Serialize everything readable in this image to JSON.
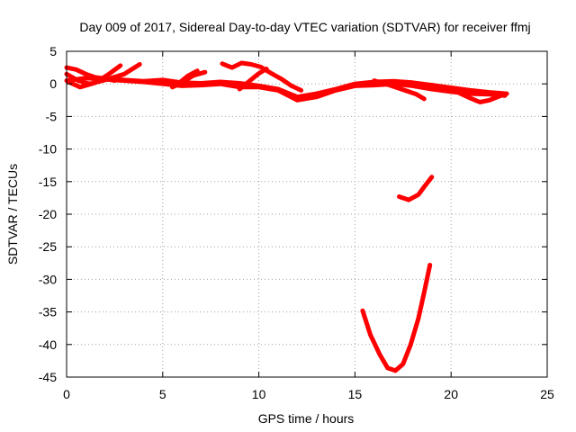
{
  "chart_data": {
    "type": "line",
    "title": "Day 009 of 2017, Sidereal Day-to-day VTEC variation (SDTVAR) for receiver ffmj",
    "xlabel": "GPS time / hours",
    "ylabel": "SDTVAR / TECUs",
    "xlim": [
      0,
      25
    ],
    "ylim": [
      -45,
      5
    ],
    "xticks": [
      0,
      5,
      10,
      15,
      20,
      25
    ],
    "yticks": [
      5,
      0,
      -5,
      -10,
      -15,
      -20,
      -25,
      -30,
      -35,
      -40,
      -45
    ],
    "grid": true,
    "legend": "none",
    "color": "#ff0000",
    "series": [
      {
        "values": [
          [
            0,
            2.5
          ],
          [
            0.5,
            2.2
          ],
          [
            1,
            1.5
          ],
          [
            1.5,
            1.0
          ],
          [
            2,
            0.8
          ],
          [
            2.5,
            0.5
          ]
        ]
      },
      {
        "values": [
          [
            0,
            1.5
          ],
          [
            0.6,
            0.5
          ],
          [
            1.2,
            0.0
          ],
          [
            2,
            0.6
          ],
          [
            3,
            1.5
          ],
          [
            3.8,
            3.0
          ]
        ]
      },
      {
        "values": [
          [
            0.1,
            0.3
          ],
          [
            0.7,
            -0.5
          ],
          [
            1.5,
            0.2
          ],
          [
            2.2,
            1.5
          ],
          [
            2.8,
            2.8
          ]
        ]
      },
      {
        "values": [
          [
            0,
            0.5
          ],
          [
            1,
            0.9
          ],
          [
            2,
            0.7
          ],
          [
            3,
            0.5
          ],
          [
            4,
            0.3
          ],
          [
            5,
            0.0
          ],
          [
            6,
            -0.3
          ],
          [
            7,
            -0.2
          ],
          [
            8,
            0.0
          ],
          [
            9,
            -0.5
          ],
          [
            10,
            -0.5
          ],
          [
            11,
            -1.0
          ],
          [
            12,
            -2.5
          ],
          [
            13,
            -2.0
          ],
          [
            14,
            -1.0
          ],
          [
            15,
            -0.3
          ],
          [
            16,
            -0.2
          ],
          [
            17,
            0.0
          ],
          [
            18,
            -0.3
          ],
          [
            19,
            -0.8
          ],
          [
            20,
            -1.2
          ],
          [
            21,
            -1.5
          ],
          [
            22,
            -1.6
          ],
          [
            22.8,
            -1.8
          ]
        ]
      },
      {
        "values": [
          [
            2,
            0.8
          ],
          [
            3,
            0.6
          ],
          [
            4,
            0.4
          ],
          [
            5,
            0.6
          ],
          [
            6,
            0.2
          ],
          [
            7,
            0.1
          ],
          [
            8,
            0.3
          ],
          [
            9,
            0.1
          ],
          [
            10,
            -0.3
          ],
          [
            11,
            -0.8
          ],
          [
            12,
            -2.0
          ],
          [
            13,
            -1.5
          ],
          [
            14,
            -0.8
          ],
          [
            15,
            0.0
          ],
          [
            16,
            0.3
          ],
          [
            17,
            0.4
          ],
          [
            18,
            0.2
          ],
          [
            19,
            -0.2
          ],
          [
            20,
            -0.6
          ],
          [
            21,
            -1.0
          ],
          [
            22,
            -1.3
          ],
          [
            22.9,
            -1.5
          ]
        ]
      },
      {
        "values": [
          [
            5.8,
            0.0
          ],
          [
            6.3,
            1.2
          ],
          [
            6.8,
            2.0
          ]
        ]
      },
      {
        "values": [
          [
            5.5,
            -0.5
          ],
          [
            6.0,
            0.2
          ],
          [
            6.6,
            1.3
          ],
          [
            7.2,
            1.8
          ]
        ]
      },
      {
        "values": [
          [
            8.1,
            3.1
          ],
          [
            8.6,
            2.5
          ],
          [
            9.1,
            3.2
          ],
          [
            9.6,
            3.0
          ],
          [
            10.1,
            2.6
          ],
          [
            10.6,
            1.7
          ],
          [
            11.2,
            0.7
          ],
          [
            11.7,
            -0.3
          ],
          [
            12.2,
            -1.0
          ]
        ]
      },
      {
        "values": [
          [
            9.0,
            -0.8
          ],
          [
            9.5,
            0.4
          ],
          [
            10.0,
            1.6
          ],
          [
            10.4,
            2.3
          ]
        ]
      },
      {
        "values": [
          [
            16,
            0.5
          ],
          [
            16.8,
            -0.2
          ],
          [
            17.6,
            -1.0
          ],
          [
            18.2,
            -1.6
          ],
          [
            18.6,
            -2.3
          ]
        ]
      },
      {
        "values": [
          [
            19,
            -0.2
          ],
          [
            20,
            -0.8
          ],
          [
            20.5,
            -1.5
          ],
          [
            21,
            -2.2
          ],
          [
            21.5,
            -2.8
          ],
          [
            22,
            -2.5
          ],
          [
            22.6,
            -1.8
          ]
        ]
      },
      {
        "values": [
          [
            17.3,
            -17.3
          ],
          [
            17.8,
            -17.8
          ],
          [
            18.3,
            -17.0
          ],
          [
            18.6,
            -15.8
          ],
          [
            19.0,
            -14.3
          ]
        ]
      },
      {
        "values": [
          [
            15.4,
            -34.8
          ],
          [
            15.8,
            -38.5
          ],
          [
            16.3,
            -41.6
          ],
          [
            16.7,
            -43.6
          ],
          [
            17.1,
            -44.0
          ],
          [
            17.5,
            -43.0
          ],
          [
            17.9,
            -40.0
          ],
          [
            18.3,
            -36.0
          ],
          [
            18.6,
            -32.0
          ],
          [
            18.9,
            -27.8
          ]
        ]
      }
    ]
  }
}
